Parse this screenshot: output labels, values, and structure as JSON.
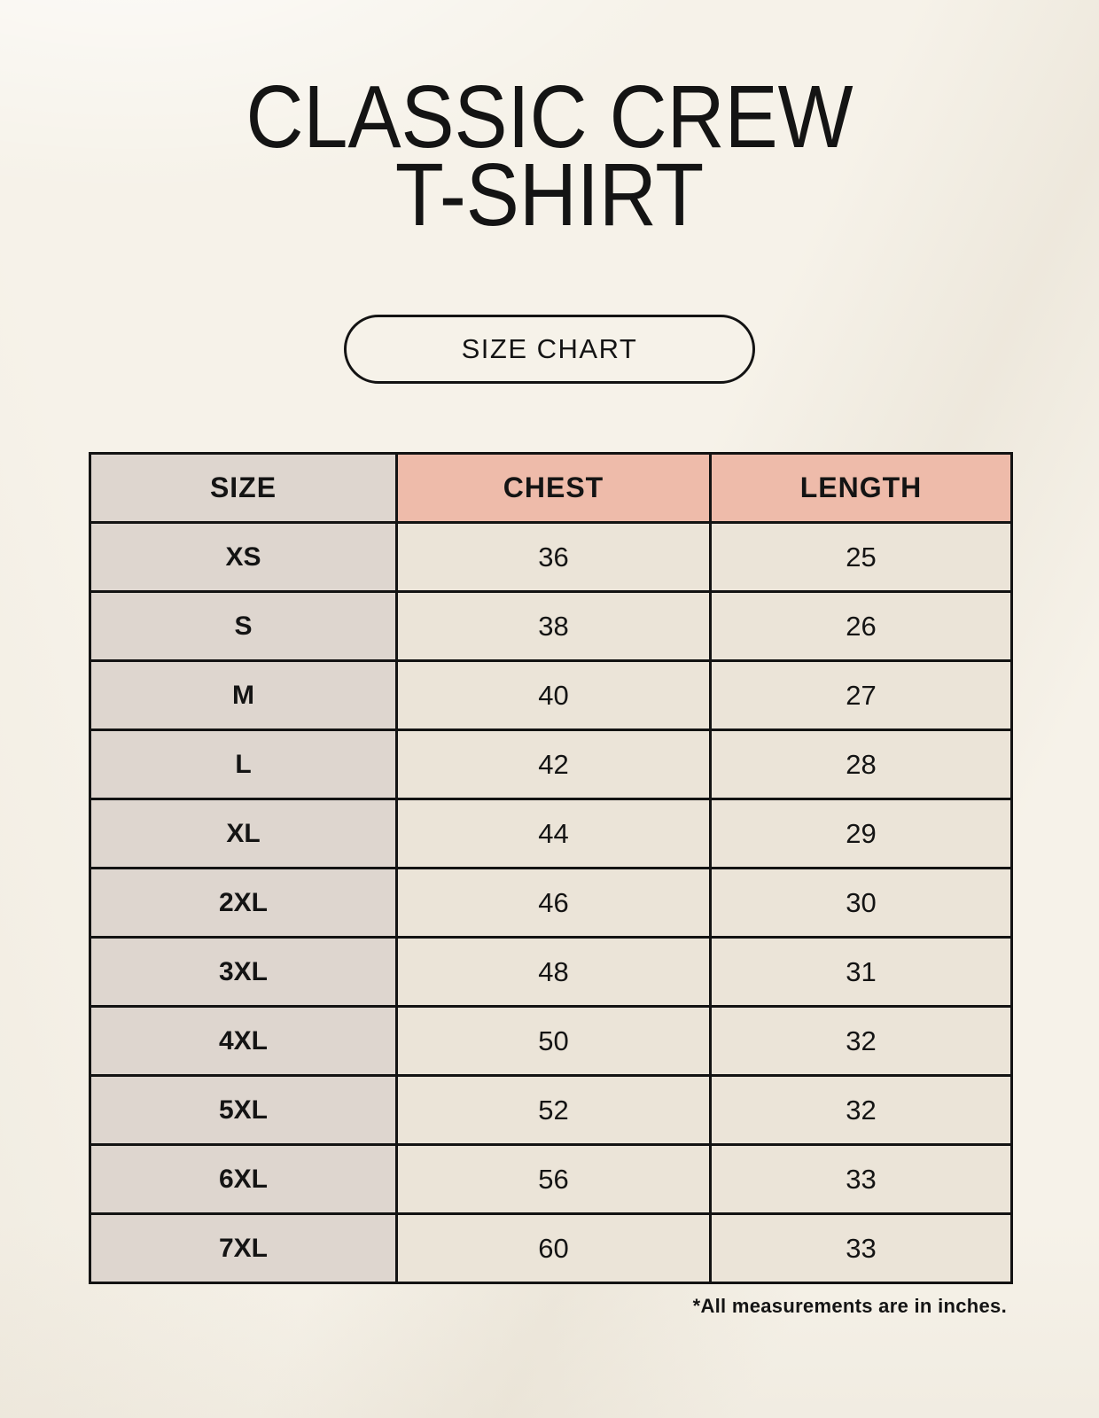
{
  "header": {
    "title_line1": "CLASSIC CREW",
    "title_line2": "T-SHIRT"
  },
  "size_chart_badge": {
    "label": "SIZE CHART"
  },
  "footnote": {
    "text": "*All measurements are in inches."
  },
  "colors": {
    "page_background": "#f6f2e9",
    "text": "#141414",
    "table_border": "#131313",
    "accent_header_bg": "#eebbaa",
    "size_column_bg": "#ded6cf",
    "cell_bg": "#ebe4d8"
  },
  "chart_data": {
    "type": "table",
    "title": "CLASSIC CREW T-SHIRT",
    "subtitle": "SIZE CHART",
    "unit_note": "*All measurements are in inches.",
    "columns": [
      "SIZE",
      "CHEST",
      "LENGTH"
    ],
    "rows": [
      [
        "XS",
        "36",
        "25"
      ],
      [
        "S",
        "38",
        "26"
      ],
      [
        "M",
        "40",
        "27"
      ],
      [
        "L",
        "42",
        "28"
      ],
      [
        "XL",
        "44",
        "29"
      ],
      [
        "2XL",
        "46",
        "30"
      ],
      [
        "3XL",
        "48",
        "31"
      ],
      [
        "4XL",
        "50",
        "32"
      ],
      [
        "5XL",
        "52",
        "32"
      ],
      [
        "6XL",
        "56",
        "33"
      ],
      [
        "7XL",
        "60",
        "33"
      ]
    ]
  }
}
